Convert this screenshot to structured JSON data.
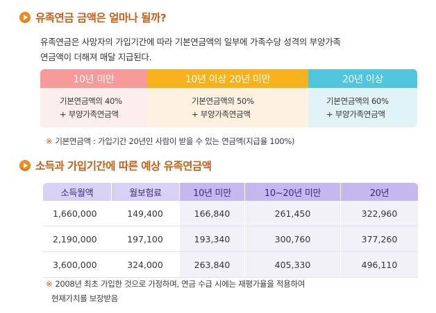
{
  "section1": {
    "title": "유족연금 금액은 얼마나 될까?",
    "intro_line1": "유족연금은 사망자의 가입기간에 따라 기본연금액의 일부에 가족수당 성격의 부양가족",
    "intro_line2": "연금액이 더해져 매달 지급된다."
  },
  "pension_table": {
    "columns": [
      {
        "header": "10년 미만",
        "line1": "기본연금액의 40%",
        "line2": "+ 부양가족연금액"
      },
      {
        "header": "10년 이상 20년 미만",
        "line1": "기본연금액의 50%",
        "line2": "+ 부양가족연금액"
      },
      {
        "header": "20년 이상",
        "line1": "기본연금액의 60%",
        "line2": "+ 부양가족연금액"
      }
    ],
    "colors": {
      "col1_header": "#f79a9a",
      "col2_header": "#f7b21c",
      "col3_header": "#4fc6dc"
    }
  },
  "note1": {
    "mark": "※",
    "text": "기본연금액 : 가입기간 20년인 사람이 받을 수 있는 연금액(지급율 100%)"
  },
  "section2": {
    "title": "소득과 가입기간에 따른 예상 유족연금액"
  },
  "estimate_table": {
    "headers": [
      "소득월액",
      "월보험료",
      "10년 미만",
      "10~20년 미만",
      "20년"
    ],
    "rows": [
      [
        "1,660,000",
        "149,400",
        "166,840",
        "261,450",
        "322,960"
      ],
      [
        "2,190,000",
        "197,100",
        "193,340",
        "300,760",
        "377,260"
      ],
      [
        "3,600,000",
        "324,000",
        "263,840",
        "405,330",
        "496,110"
      ]
    ]
  },
  "note2": {
    "mark": "※",
    "line1": "2008년 최초 가입한 것으로 가정하며, 연금 수급 시에는 재평가율을 적용하여",
    "line2": "현재가치를 보장받음"
  },
  "colors": {
    "accent": "#c4601b",
    "bullet": "#f08a1c",
    "table_header": "#c6b8ee"
  }
}
